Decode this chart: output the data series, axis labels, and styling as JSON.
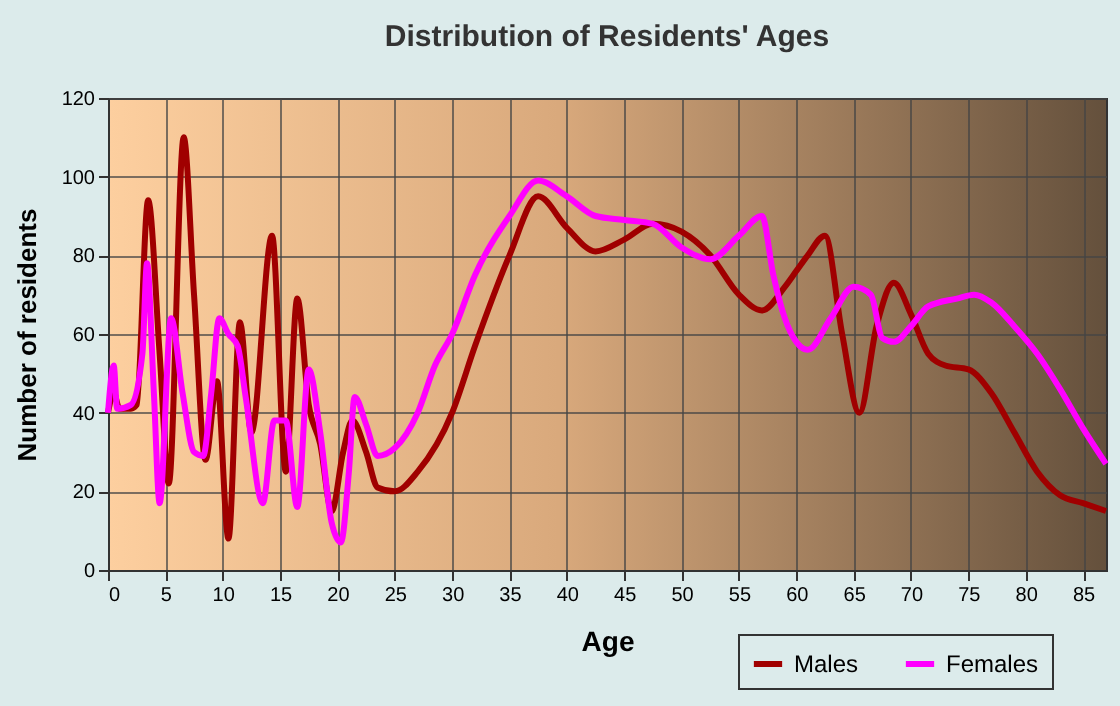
{
  "chart_data": {
    "type": "line",
    "title": "Distribution of Residents' Ages",
    "xlabel": "Age",
    "ylabel": "Number of residents",
    "xlim": [
      0,
      87
    ],
    "xticks": [
      0,
      5,
      10,
      15,
      20,
      25,
      30,
      35,
      40,
      45,
      50,
      55,
      60,
      65,
      70,
      75,
      80,
      85
    ],
    "ylim": [
      0,
      120
    ],
    "yticks": [
      0,
      20,
      40,
      60,
      80,
      100,
      120
    ],
    "grid": true,
    "legend": "bottom right",
    "line_style": "solid",
    "marker": "none",
    "series": [
      {
        "name": "Males",
        "color": "#a00000",
        "x": [
          0,
          0.5,
          1,
          2,
          2.5,
          3.5,
          4.5,
          5.3,
          6.6,
          7.5,
          8.5,
          9.5,
          10.5,
          11.5,
          12.5,
          14.3,
          15.5,
          16.5,
          17.5,
          18.5,
          19.5,
          20.5,
          21.3,
          22.5,
          23.5,
          25,
          27,
          30,
          32,
          35,
          37.5,
          40,
          42.5,
          45,
          47.5,
          50,
          52.5,
          55,
          57,
          59,
          60,
          61,
          62.5,
          64,
          65.5,
          67,
          68.5,
          70,
          71.5,
          73,
          75,
          77,
          79,
          81,
          83,
          85,
          87
        ],
        "values": [
          40,
          45,
          41,
          41,
          42,
          94,
          55,
          22,
          110,
          70,
          28,
          48,
          8,
          63,
          35,
          85,
          25,
          69,
          42,
          32,
          15,
          30,
          38,
          30,
          21,
          20,
          25,
          40,
          57,
          80,
          95,
          87,
          81,
          84,
          88,
          86,
          80,
          70,
          66,
          72,
          76,
          80,
          85,
          60,
          40,
          62,
          73,
          65,
          55,
          52,
          51,
          45,
          35,
          25,
          19,
          17,
          15
        ]
      },
      {
        "name": "Females",
        "color": "#ff00ff",
        "x": [
          0,
          0.5,
          0.8,
          2,
          3,
          3.4,
          4,
          4.5,
          5.5,
          6.5,
          7.5,
          8.3,
          9,
          9.7,
          10.5,
          11.3,
          12,
          13.5,
          14.5,
          15.5,
          16.5,
          17.5,
          18.5,
          19.5,
          20.3,
          21,
          21.5,
          22.5,
          23.5,
          25,
          27,
          28.5,
          30,
          32,
          35,
          37.5,
          40,
          42.5,
          45,
          47.5,
          50,
          52.5,
          55,
          57,
          58,
          59,
          60,
          61,
          63,
          65,
          66.5,
          67.5,
          68.5,
          70,
          71.5,
          74,
          75.5,
          77,
          79,
          81,
          83,
          85,
          87
        ],
        "values": [
          40,
          52,
          41,
          42,
          55,
          78,
          45,
          17,
          64,
          45,
          30,
          29,
          45,
          64,
          60,
          57,
          44,
          17,
          38,
          38,
          16,
          51,
          35,
          12,
          7,
          25,
          44,
          37,
          29,
          31,
          40,
          52,
          60,
          75,
          90,
          99,
          95,
          90,
          89,
          88,
          82,
          79,
          85,
          90,
          75,
          64,
          58,
          56,
          64,
          72,
          70,
          59,
          58,
          62,
          67,
          69,
          70,
          68,
          62,
          55,
          46,
          36,
          27
        ]
      }
    ]
  }
}
